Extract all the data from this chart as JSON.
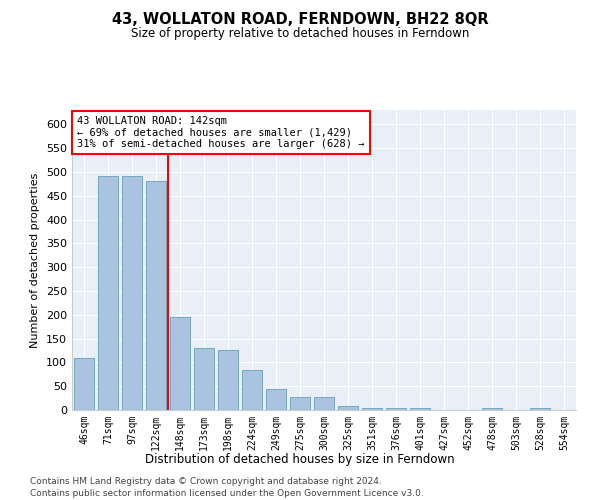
{
  "title": "43, WOLLATON ROAD, FERNDOWN, BH22 8QR",
  "subtitle": "Size of property relative to detached houses in Ferndown",
  "xlabel": "Distribution of detached houses by size in Ferndown",
  "ylabel": "Number of detached properties",
  "categories": [
    "46sqm",
    "71sqm",
    "97sqm",
    "122sqm",
    "148sqm",
    "173sqm",
    "198sqm",
    "224sqm",
    "249sqm",
    "275sqm",
    "300sqm",
    "325sqm",
    "351sqm",
    "376sqm",
    "401sqm",
    "427sqm",
    "452sqm",
    "478sqm",
    "503sqm",
    "528sqm",
    "554sqm"
  ],
  "values": [
    110,
    492,
    492,
    480,
    195,
    130,
    125,
    83,
    45,
    28,
    28,
    8,
    5,
    4,
    4,
    1,
    1,
    4,
    1,
    4,
    1
  ],
  "bar_color": "#aac4e0",
  "bar_edge_color": "#6a9fc0",
  "red_line_x": 3.5,
  "annotation_line1": "43 WOLLATON ROAD: 142sqm",
  "annotation_line2": "← 69% of detached houses are smaller (1,429)",
  "annotation_line3": "31% of semi-detached houses are larger (628) →",
  "ylim": [
    0,
    630
  ],
  "yticks": [
    0,
    50,
    100,
    150,
    200,
    250,
    300,
    350,
    400,
    450,
    500,
    550,
    600
  ],
  "bg_color": "#e8eff7",
  "grid_color": "#ffffff",
  "footer1": "Contains HM Land Registry data © Crown copyright and database right 2024.",
  "footer2": "Contains public sector information licensed under the Open Government Licence v3.0."
}
